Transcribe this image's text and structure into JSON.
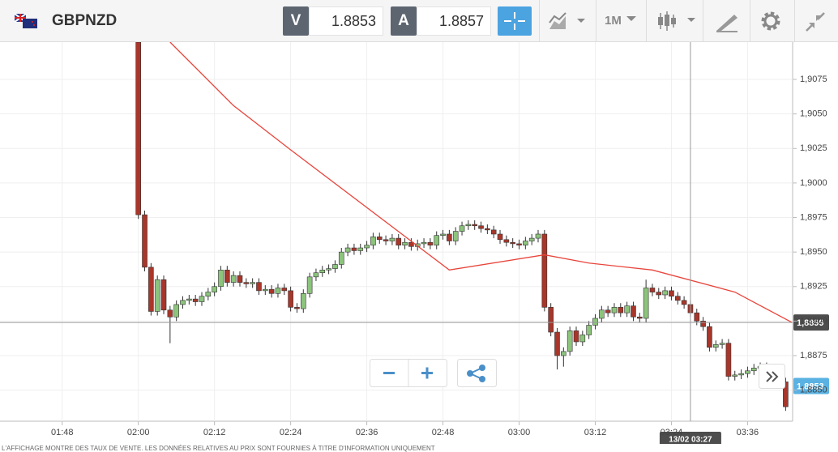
{
  "header": {
    "symbol": "GBPNZD",
    "bid_label": "V",
    "bid": 1.8853,
    "ask_label": "A",
    "ask": 1.8857,
    "timeframe": "1M"
  },
  "chart_data": {
    "type": "candlestick",
    "up_color": "#8cc47c",
    "down_color": "#a8362a",
    "x": [
      120,
      121,
      122,
      123,
      124,
      125,
      126,
      127,
      128,
      129,
      130,
      131,
      132,
      133,
      134,
      135,
      136,
      137,
      138,
      139,
      140,
      141,
      142,
      143,
      144,
      145,
      146,
      147,
      148,
      149,
      150,
      151,
      152,
      153,
      154,
      155,
      156,
      157,
      158,
      159,
      160,
      161,
      162,
      163,
      164,
      165,
      166,
      167,
      168,
      169,
      170,
      171,
      172,
      173,
      174,
      175,
      176,
      177,
      178,
      179,
      180,
      181,
      182,
      183,
      184,
      185,
      186,
      187,
      188,
      189,
      190,
      191,
      192,
      193,
      194,
      195,
      196,
      197,
      198,
      199,
      200,
      201,
      202,
      203,
      204,
      205,
      206,
      207,
      208,
      209,
      210,
      211,
      212,
      213,
      214,
      215,
      216,
      217,
      218,
      219,
      220,
      221,
      222
    ],
    "open": [
      1.9102,
      1.8977,
      1.8939,
      1.8907,
      1.893,
      1.8908,
      1.8903,
      1.8912,
      1.8915,
      1.8916,
      1.8914,
      1.8918,
      1.8921,
      1.8925,
      1.8937,
      1.8928,
      1.8933,
      1.8928,
      1.8927,
      1.8928,
      1.8922,
      1.8923,
      1.892,
      1.8924,
      1.8922,
      1.891,
      1.8909,
      1.892,
      1.8932,
      1.8935,
      1.8937,
      1.8938,
      1.8941,
      1.895,
      1.8953,
      1.8951,
      1.8953,
      1.8955,
      1.8961,
      1.8959,
      1.8958,
      1.896,
      1.8955,
      1.8957,
      1.8954,
      1.8956,
      1.8957,
      1.8955,
      1.8962,
      1.8963,
      1.8958,
      1.8965,
      1.8969,
      1.897,
      1.8969,
      1.8967,
      1.8966,
      1.8963,
      1.8959,
      1.8957,
      1.8956,
      1.8955,
      1.8958,
      1.896,
      1.8963,
      1.891,
      1.8892,
      1.8875,
      1.8878,
      1.8893,
      1.8885,
      1.889,
      1.8897,
      1.8902,
      1.8908,
      1.8906,
      1.891,
      1.8906,
      1.8911,
      1.8903,
      1.8902,
      1.8924,
      1.8921,
      1.8919,
      1.8922,
      1.8918,
      1.8915,
      1.8912,
      1.8906,
      1.89,
      1.8896,
      1.8881,
      1.8883,
      1.8884,
      1.886,
      1.8861,
      1.8862,
      1.8864,
      1.8866,
      1.8867,
      1.8864,
      1.8855,
      1.8856
    ],
    "high": [
      1.9105,
      1.898,
      1.8942,
      1.8933,
      1.8933,
      1.8911,
      1.8915,
      1.8918,
      1.8919,
      1.8919,
      1.8921,
      1.8924,
      1.8928,
      1.894,
      1.894,
      1.8936,
      1.8936,
      1.8931,
      1.8931,
      1.8931,
      1.8926,
      1.8926,
      1.8927,
      1.8927,
      1.8925,
      1.8913,
      1.8923,
      1.8935,
      1.8938,
      1.894,
      1.8941,
      1.8944,
      1.8953,
      1.8956,
      1.8956,
      1.8956,
      1.8958,
      1.8964,
      1.8964,
      1.8962,
      1.8963,
      1.8963,
      1.896,
      1.896,
      1.8959,
      1.896,
      1.896,
      1.8965,
      1.8966,
      1.8966,
      1.8968,
      1.8972,
      1.8973,
      1.8973,
      1.8972,
      1.897,
      1.8969,
      1.8966,
      1.8962,
      1.896,
      1.8959,
      1.8961,
      1.8963,
      1.8966,
      1.8966,
      1.8913,
      1.8895,
      1.8881,
      1.8896,
      1.8896,
      1.8893,
      1.89,
      1.8905,
      1.8911,
      1.8911,
      1.8913,
      1.8913,
      1.8914,
      1.8914,
      1.8906,
      1.893,
      1.8927,
      1.8924,
      1.8925,
      1.8925,
      1.8921,
      1.8918,
      1.8915,
      1.8909,
      1.8903,
      1.8899,
      1.8886,
      1.8887,
      1.8887,
      1.8864,
      1.8865,
      1.8867,
      1.8869,
      1.887,
      1.887,
      1.8867,
      1.8859,
      1.8859
    ],
    "low": [
      1.8974,
      1.8936,
      1.8904,
      1.8904,
      1.8905,
      1.8884,
      1.89,
      1.8909,
      1.8912,
      1.8911,
      1.8911,
      1.8915,
      1.8918,
      1.8922,
      1.8925,
      1.8925,
      1.8925,
      1.8924,
      1.8924,
      1.8919,
      1.8919,
      1.8917,
      1.8917,
      1.8919,
      1.8907,
      1.8906,
      1.8906,
      1.8917,
      1.8929,
      1.8932,
      1.8934,
      1.8935,
      1.8938,
      1.8947,
      1.8948,
      1.8948,
      1.895,
      1.8952,
      1.8956,
      1.8955,
      1.8955,
      1.8952,
      1.8952,
      1.8951,
      1.8951,
      1.8953,
      1.8952,
      1.8952,
      1.8959,
      1.8955,
      1.8955,
      1.8962,
      1.8966,
      1.8966,
      1.8964,
      1.8963,
      1.896,
      1.8956,
      1.8954,
      1.8953,
      1.8952,
      1.8952,
      1.8955,
      1.8957,
      1.8907,
      1.8889,
      1.8865,
      1.8867,
      1.8875,
      1.8882,
      1.8882,
      1.8887,
      1.8894,
      1.8899,
      1.8903,
      1.8903,
      1.8903,
      1.8903,
      1.89,
      1.8899,
      1.8899,
      1.8918,
      1.8916,
      1.8916,
      1.8915,
      1.8912,
      1.8909,
      1.8903,
      1.8897,
      1.8893,
      1.8878,
      1.8878,
      1.888,
      1.8857,
      1.8857,
      1.8858,
      1.8859,
      1.8861,
      1.8863,
      1.8861,
      1.8852,
      1.8852,
      1.8835
    ],
    "close": [
      1.8977,
      1.8939,
      1.8907,
      1.893,
      1.8908,
      1.8903,
      1.8912,
      1.8915,
      1.8916,
      1.8914,
      1.8918,
      1.8921,
      1.8925,
      1.8937,
      1.8928,
      1.8933,
      1.8928,
      1.8927,
      1.8928,
      1.8922,
      1.8923,
      1.892,
      1.8924,
      1.8922,
      1.891,
      1.8909,
      1.892,
      1.8932,
      1.8935,
      1.8937,
      1.8938,
      1.8941,
      1.895,
      1.8953,
      1.8951,
      1.8953,
      1.8955,
      1.8961,
      1.8959,
      1.8958,
      1.896,
      1.8955,
      1.8957,
      1.8954,
      1.8956,
      1.8957,
      1.8955,
      1.8962,
      1.8963,
      1.8958,
      1.8965,
      1.8969,
      1.897,
      1.8969,
      1.8967,
      1.8966,
      1.8963,
      1.8959,
      1.8957,
      1.8956,
      1.8955,
      1.8958,
      1.896,
      1.8963,
      1.891,
      1.8892,
      1.8875,
      1.8878,
      1.8893,
      1.8885,
      1.889,
      1.8897,
      1.8902,
      1.8908,
      1.8906,
      1.891,
      1.8906,
      1.8911,
      1.8903,
      1.8902,
      1.8924,
      1.8921,
      1.8919,
      1.8922,
      1.8918,
      1.8915,
      1.8912,
      1.8906,
      1.89,
      1.8896,
      1.8881,
      1.8883,
      1.8884,
      1.886,
      1.8861,
      1.8862,
      1.8864,
      1.8866,
      1.8867,
      1.8864,
      1.8855,
      1.8856,
      1.8838
    ],
    "line": {
      "color": "#e8453c",
      "x": [
        125,
        135,
        144,
        169,
        184,
        191,
        201,
        214,
        223
      ],
      "values": [
        1.9102,
        1.9056,
        1.9024,
        1.8937,
        1.8948,
        1.8942,
        1.8937,
        1.8921,
        1.8899
      ]
    },
    "xlim": [
      98.2,
      223.1
    ],
    "ylim": [
      1.88275,
      1.9102
    ],
    "xticks": [
      {
        "value": 108,
        "label": "01:48"
      },
      {
        "value": 120,
        "label": "02:00"
      },
      {
        "value": 132,
        "label": "02:12"
      },
      {
        "value": 144,
        "label": "02:24"
      },
      {
        "value": 156,
        "label": "02:36"
      },
      {
        "value": 168,
        "label": "02:48"
      },
      {
        "value": 180,
        "label": "03:00"
      },
      {
        "value": 192,
        "label": "03:12"
      },
      {
        "value": 204,
        "label": "03:24"
      },
      {
        "value": 216,
        "label": "03:36"
      }
    ],
    "yticks": [
      {
        "value": 1.885,
        "label": "1,8850"
      },
      {
        "value": 1.8875,
        "label": "1,8875"
      },
      {
        "value": 1.89,
        "label": "1,8900"
      },
      {
        "value": 1.8925,
        "label": "1,8925"
      },
      {
        "value": 1.895,
        "label": "1,8950"
      },
      {
        "value": 1.8975,
        "label": "1,8975"
      },
      {
        "value": 1.9,
        "label": "1,9000"
      },
      {
        "value": 1.9025,
        "label": "1,9025"
      },
      {
        "value": 1.905,
        "label": "1,9050"
      },
      {
        "value": 1.9075,
        "label": "1,9075"
      }
    ],
    "grid": true,
    "crosshair": {
      "y": {
        "value": 1.8899,
        "label": "1,8899"
      },
      "x": {
        "value": 207,
        "label": "13/02 03:27"
      }
    },
    "last_price": {
      "value": 1.8853,
      "label": "1,8853"
    }
  },
  "footer": "L'AFFICHAGE MONTRE DES TAUX DE VENTE. LES DONNÉES RELATIVES AU PRIX SONT FOURNIES À TITRE D'INFORMATION UNIQUEMENT"
}
